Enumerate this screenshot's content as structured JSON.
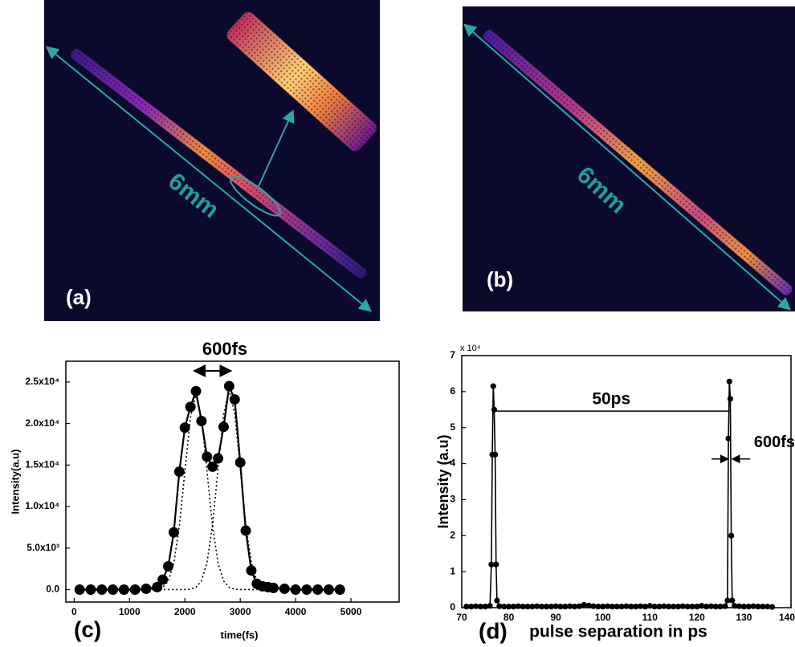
{
  "images": [
    {
      "label": "(a)",
      "scale": "6mm"
    },
    {
      "label": "(b)",
      "scale": "6mm"
    }
  ],
  "chart_data": [
    {
      "type": "line",
      "title": "600fs",
      "xlabel": "time(fs)",
      "ylabel": "Intensity(a.u)",
      "panel": "(c)",
      "x": [
        100,
        300,
        500,
        700,
        900,
        1100,
        1300,
        1500,
        1600,
        1700,
        1800,
        1900,
        2000,
        2100,
        2200,
        2300,
        2400,
        2500,
        2600,
        2700,
        2800,
        2900,
        3000,
        3100,
        3200,
        3300,
        3400,
        3500,
        3600,
        3800,
        4000,
        4200,
        4400,
        4600,
        4800
      ],
      "series": [
        {
          "color": "#000000",
          "marker": "circle",
          "values": [
            0,
            0,
            0,
            0,
            0,
            0,
            100,
            300,
            1200,
            2800,
            6900,
            14200,
            19500,
            22000,
            23900,
            20300,
            16000,
            14800,
            15800,
            19600,
            24500,
            22900,
            15300,
            7100,
            2300,
            700,
            400,
            300,
            200,
            100,
            0,
            0,
            0,
            0,
            0
          ]
        },
        {
          "color": "#000000",
          "dash": "dotted",
          "values": [
            0,
            0,
            0,
            0,
            0,
            0,
            0,
            50,
            260,
            1030,
            3180,
            7630,
            14250,
            20700,
            23500,
            20700,
            14250,
            7630,
            3180,
            1030,
            260,
            50,
            0,
            0,
            0,
            0,
            0,
            0,
            0,
            0,
            0,
            0,
            0,
            0,
            0
          ]
        },
        {
          "color": "#000000",
          "dash": "dotted",
          "values": [
            0,
            0,
            0,
            0,
            0,
            0,
            0,
            0,
            0,
            0,
            0,
            0,
            0,
            50,
            270,
            1050,
            3250,
            7790,
            14550,
            21150,
            24000,
            21150,
            14550,
            7790,
            3250,
            1050,
            270,
            50,
            0,
            0,
            0,
            0,
            0,
            0,
            0
          ]
        }
      ],
      "xlim": [
        -150,
        5870
      ],
      "xticks": [
        0,
        1000,
        2000,
        3000,
        4000,
        5000
      ],
      "ylim": [
        -1500,
        27500
      ],
      "yticks": [
        {
          "value": 0,
          "label": "0.0"
        },
        {
          "value": 5000,
          "label": "5.0x10³"
        },
        {
          "value": 10000,
          "label": "1.0x10⁴"
        },
        {
          "value": 15000,
          "label": "1.5x10⁴"
        },
        {
          "value": 20000,
          "label": "2.0x10⁴"
        },
        {
          "value": 25000,
          "label": "2.5x10⁴"
        }
      ]
    },
    {
      "type": "line",
      "xlabel": "pulse separation in ps",
      "ylabel": "Intensity (a.u)",
      "panel": "(d)",
      "multiplier": "x 10⁴",
      "annotations": [
        "50ps",
        "600fs"
      ],
      "x": [
        71,
        72,
        73,
        74,
        75,
        76,
        76.3,
        76.5,
        76.7,
        76.9,
        77.1,
        77.3,
        77.5,
        78,
        79,
        80,
        81,
        82,
        83,
        84,
        85,
        86,
        87,
        88,
        89,
        90,
        91,
        92,
        93,
        94,
        95,
        96,
        97,
        98,
        99,
        100,
        101,
        102,
        103,
        104,
        105,
        106,
        107,
        108,
        109,
        110,
        111,
        112,
        113,
        114,
        115,
        116,
        117,
        118,
        119,
        120,
        121,
        122,
        123,
        124,
        125,
        126,
        126.5,
        126.7,
        126.9,
        127.1,
        127.3,
        127.5,
        128,
        129,
        130,
        131,
        132,
        133,
        134,
        135,
        136
      ],
      "series": [
        {
          "color": "#000000",
          "marker": "circle",
          "values": [
            0.03,
            0.03,
            0.04,
            0.03,
            0.03,
            0.05,
            1.2,
            4.25,
            6.15,
            5.5,
            4.25,
            1.2,
            0.2,
            0.04,
            0.03,
            0.03,
            0.03,
            0.04,
            0.03,
            0.03,
            0.03,
            0.04,
            0.03,
            0.03,
            0.03,
            0.04,
            0.03,
            0.03,
            0.04,
            0.03,
            0.04,
            0.08,
            0.06,
            0.04,
            0.03,
            0.03,
            0.04,
            0.03,
            0.03,
            0.03,
            0.04,
            0.03,
            0.03,
            0.04,
            0.03,
            0.05,
            0.03,
            0.03,
            0.04,
            0.03,
            0.03,
            0.03,
            0.04,
            0.03,
            0.03,
            0.03,
            0.05,
            0.03,
            0.04,
            0.03,
            0.03,
            0.04,
            0.2,
            4.7,
            6.28,
            5.8,
            2.0,
            0.2,
            0.05,
            0.04,
            0.03,
            0.03,
            0.04,
            0.03,
            0.03,
            0.03,
            0.02
          ]
        }
      ],
      "xlim": [
        70,
        140
      ],
      "xticks": [
        70,
        80,
        90,
        100,
        110,
        120,
        130,
        140
      ],
      "ylim": [
        0,
        7
      ],
      "yticks": [
        0,
        1,
        2,
        3,
        4,
        5,
        6,
        7
      ]
    }
  ]
}
